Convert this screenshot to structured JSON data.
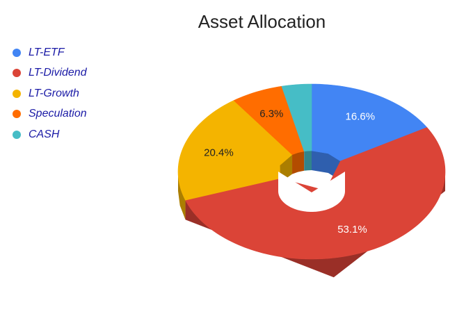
{
  "chart_data": {
    "type": "pie",
    "variant": "3d-donut",
    "title": "Asset Allocation",
    "legend_position": "left",
    "slices": [
      {
        "label": "LT-ETF",
        "value": 16.6,
        "display": "16.6%",
        "color": "#4285f4",
        "side": "#2f5fae",
        "text_color": "#ffffff"
      },
      {
        "label": "LT-Dividend",
        "value": 53.1,
        "display": "53.1%",
        "color": "#db4437",
        "side": "#9a2f27",
        "text_color": "#ffffff"
      },
      {
        "label": "LT-Growth",
        "value": 20.4,
        "display": "20.4%",
        "color": "#f4b400",
        "side": "#ab7e00",
        "text_color": "#222222"
      },
      {
        "label": "Speculation",
        "value": 6.3,
        "display": "6.3%",
        "color": "#ff6d00",
        "side": "#b34c00",
        "text_color": "#222222"
      },
      {
        "label": "CASH",
        "value": 3.6,
        "display": "",
        "color": "#46bdc6",
        "side": "#31848b",
        "text_color": "#222222"
      }
    ]
  }
}
